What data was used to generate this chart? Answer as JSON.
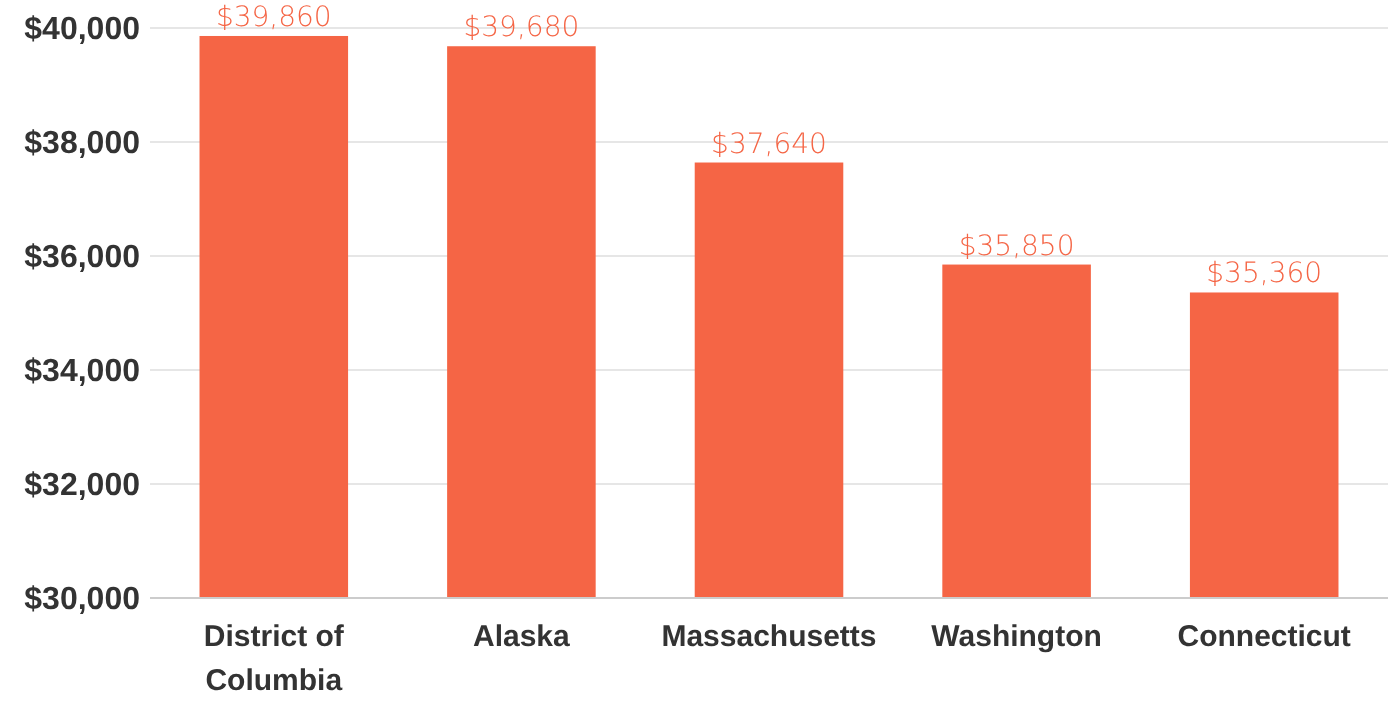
{
  "chart_data": {
    "type": "bar",
    "categories": [
      "District of Columbia",
      "Alaska",
      "Massachusetts",
      "Washington",
      "Connecticut"
    ],
    "values": [
      39860,
      39680,
      37640,
      35850,
      35360
    ],
    "color": "#f56545",
    "value_labels": [
      "$39,860",
      "$39,680",
      "$37,640",
      "$35,850",
      "$35,360"
    ],
    "ylim": [
      30000,
      40000
    ],
    "yticks": [
      {
        "value": 30000,
        "label": "$30,000"
      },
      {
        "value": 32000,
        "label": "$32,000"
      },
      {
        "value": 34000,
        "label": "$34,000"
      },
      {
        "value": 36000,
        "label": "$36,000"
      },
      {
        "value": 38000,
        "label": "$38,000"
      },
      {
        "value": 40000,
        "label": "$40,000"
      }
    ],
    "grid": "y"
  }
}
